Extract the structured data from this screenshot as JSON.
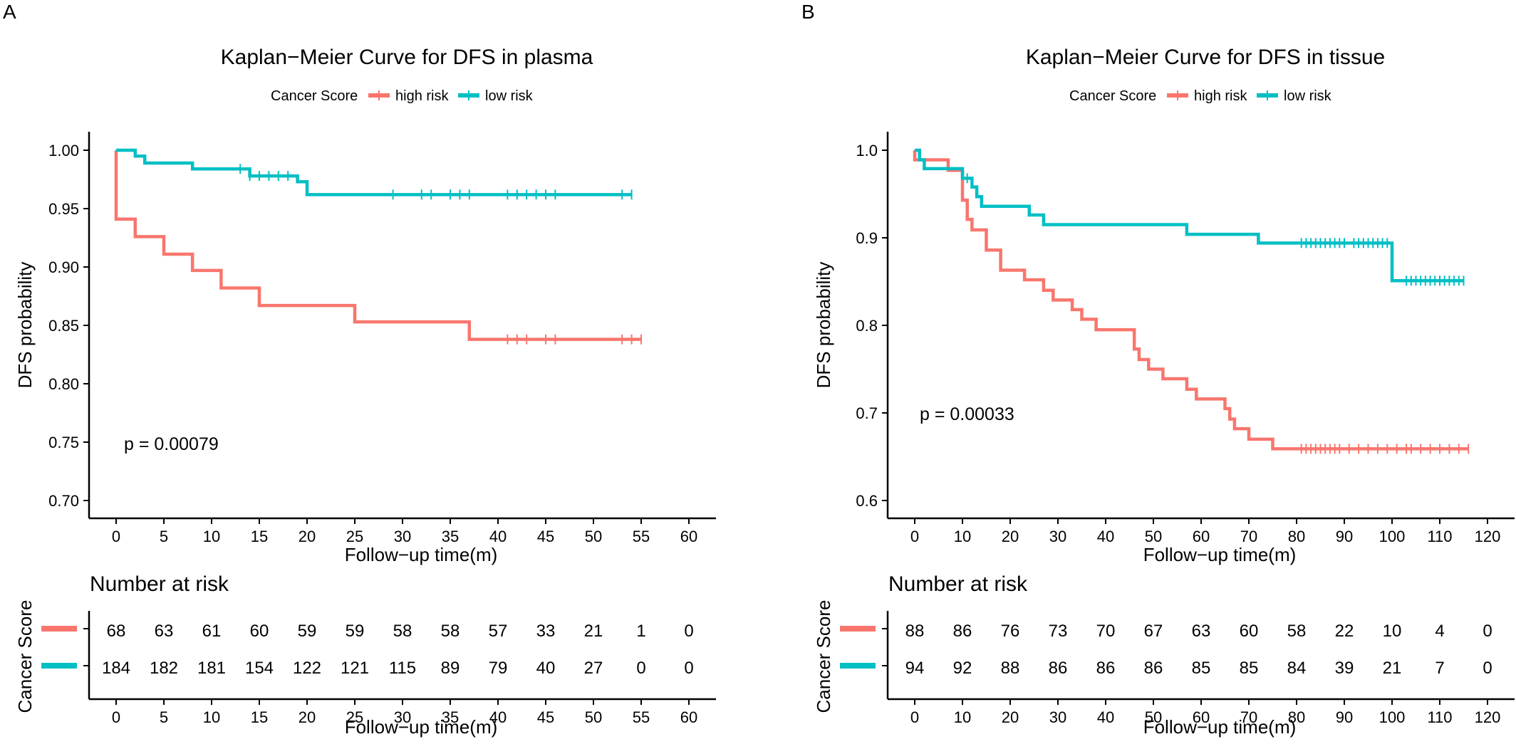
{
  "chart_data": [
    {
      "type": "line",
      "panel_label": "A",
      "title": "Kaplan−Meier Curve for DFS in plasma",
      "xlabel": "Follow−up time(m)",
      "ylabel": "DFS probability",
      "xlim": [
        0,
        60
      ],
      "ylim": [
        0.7,
        1.0
      ],
      "xticks": [
        0,
        5,
        10,
        15,
        20,
        25,
        30,
        35,
        40,
        45,
        50,
        55,
        60
      ],
      "yticks": [
        0.7,
        0.75,
        0.8,
        0.85,
        0.9,
        0.95,
        1.0
      ],
      "ytick_labels": [
        "0.70",
        "0.75",
        "0.80",
        "0.85",
        "0.90",
        "0.95",
        "1.00"
      ],
      "grid": false,
      "legend": {
        "title": "Cancer Score",
        "position": "top"
      },
      "annotation": "p = 0.00079",
      "series": [
        {
          "name": "high risk",
          "color": "#F8766D",
          "steps": [
            [
              0,
              1.0
            ],
            [
              0,
              0.941
            ],
            [
              2,
              0.926
            ],
            [
              5,
              0.911
            ],
            [
              8,
              0.897
            ],
            [
              11,
              0.882
            ],
            [
              15,
              0.867
            ],
            [
              25,
              0.853
            ],
            [
              37,
              0.838
            ],
            [
              55,
              0.838
            ]
          ],
          "censor": [
            41,
            42,
            43,
            45,
            46,
            53,
            54,
            55
          ]
        },
        {
          "name": "low risk",
          "color": "#00BFC4",
          "steps": [
            [
              0,
              1.0
            ],
            [
              2,
              0.995
            ],
            [
              3,
              0.989
            ],
            [
              6,
              0.989
            ],
            [
              8,
              0.984
            ],
            [
              14,
              0.978
            ],
            [
              19,
              0.973
            ],
            [
              20,
              0.962
            ],
            [
              54,
              0.962
            ]
          ],
          "censor": [
            13,
            14,
            15,
            16,
            17,
            18,
            29,
            32,
            33,
            35,
            36,
            37,
            41,
            42,
            43,
            44,
            45,
            46,
            53,
            54
          ]
        }
      ],
      "risk_table": {
        "title": "Number at risk",
        "ylabel": "Cancer Score",
        "xlabel": "Follow−up time(m)",
        "times": [
          0,
          5,
          10,
          15,
          20,
          25,
          30,
          35,
          40,
          45,
          50,
          55,
          60
        ],
        "rows": [
          {
            "group": "high risk",
            "color": "#F8766D",
            "counts": [
              "68",
              "63",
              "61",
              "60",
              "59",
              "59",
              "58",
              "58",
              "57",
              "33",
              "21",
              "1",
              "0"
            ]
          },
          {
            "group": "low risk",
            "color": "#00BFC4",
            "counts": [
              "184",
              "182",
              "181",
              "154",
              "122",
              "121",
              "115",
              "89",
              "79",
              "40",
              "27",
              "0",
              "0"
            ]
          }
        ]
      }
    },
    {
      "type": "line",
      "panel_label": "B",
      "title": "Kaplan−Meier Curve for DFS in tissue",
      "xlabel": "Follow−up time(m)",
      "ylabel": "DFS probability",
      "xlim": [
        0,
        120
      ],
      "ylim": [
        0.6,
        1.0
      ],
      "xticks": [
        0,
        10,
        20,
        30,
        40,
        50,
        60,
        70,
        80,
        90,
        100,
        110,
        120
      ],
      "yticks": [
        0.6,
        0.7,
        0.8,
        0.9,
        1.0
      ],
      "ytick_labels": [
        "0.6",
        "0.7",
        "0.8",
        "0.9",
        "1.0"
      ],
      "grid": false,
      "legend": {
        "title": "Cancer Score",
        "position": "top"
      },
      "annotation": "p = 0.00033",
      "series": [
        {
          "name": "high risk",
          "color": "#F8766D",
          "steps": [
            [
              0,
              1.0
            ],
            [
              0,
              0.989
            ],
            [
              7,
              0.977
            ],
            [
              10,
              0.943
            ],
            [
              11,
              0.921
            ],
            [
              12,
              0.909
            ],
            [
              15,
              0.886
            ],
            [
              18,
              0.863
            ],
            [
              23,
              0.852
            ],
            [
              27,
              0.84
            ],
            [
              29,
              0.829
            ],
            [
              33,
              0.818
            ],
            [
              35,
              0.807
            ],
            [
              38,
              0.795
            ],
            [
              46,
              0.773
            ],
            [
              47,
              0.761
            ],
            [
              49,
              0.75
            ],
            [
              52,
              0.739
            ],
            [
              57,
              0.727
            ],
            [
              59,
              0.716
            ],
            [
              65,
              0.705
            ],
            [
              66,
              0.693
            ],
            [
              67,
              0.682
            ],
            [
              70,
              0.67
            ],
            [
              75,
              0.659
            ],
            [
              116,
              0.659
            ]
          ],
          "censor": [
            81,
            82,
            83,
            84,
            85,
            86,
            87,
            88,
            89,
            91,
            93,
            95,
            97,
            99,
            101,
            103,
            104,
            106,
            108,
            110,
            112,
            114,
            116
          ]
        },
        {
          "name": "low risk",
          "color": "#00BFC4",
          "steps": [
            [
              0,
              1.0
            ],
            [
              1,
              0.989
            ],
            [
              2,
              0.979
            ],
            [
              7,
              0.979
            ],
            [
              10,
              0.968
            ],
            [
              12,
              0.958
            ],
            [
              13,
              0.947
            ],
            [
              14,
              0.936
            ],
            [
              24,
              0.926
            ],
            [
              27,
              0.915
            ],
            [
              57,
              0.904
            ],
            [
              72,
              0.894
            ],
            [
              100,
              0.851
            ],
            [
              115,
              0.851
            ]
          ],
          "censor": [
            11,
            81,
            82,
            83,
            84,
            85,
            86,
            87,
            88,
            89,
            90,
            92,
            93,
            94,
            95,
            96,
            97,
            98,
            99,
            103,
            104,
            105,
            106,
            107,
            108,
            109,
            110,
            111,
            112,
            113,
            114,
            115
          ]
        }
      ],
      "risk_table": {
        "title": "Number at risk",
        "ylabel": "Cancer Score",
        "xlabel": "Follow−up time(m)",
        "times": [
          0,
          10,
          20,
          30,
          40,
          50,
          60,
          70,
          80,
          90,
          100,
          110,
          120
        ],
        "rows": [
          {
            "group": "high risk",
            "color": "#F8766D",
            "counts": [
              "88",
              "86",
              "76",
              "73",
              "70",
              "67",
              "63",
              "60",
              "58",
              "22",
              "10",
              "4",
              "0"
            ]
          },
          {
            "group": "low risk",
            "color": "#00BFC4",
            "counts": [
              "94",
              "92",
              "88",
              "86",
              "86",
              "86",
              "85",
              "85",
              "84",
              "39",
              "21",
              "7",
              "0"
            ]
          }
        ]
      }
    }
  ]
}
